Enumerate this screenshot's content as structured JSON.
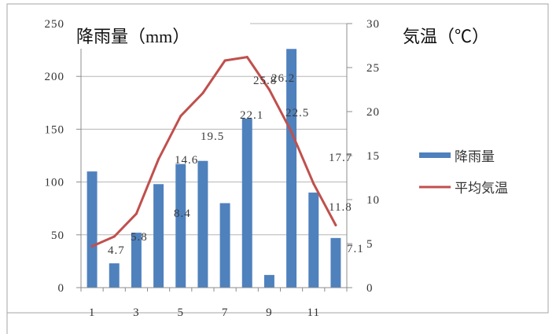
{
  "chart_data": {
    "type": "bar",
    "x": [
      1,
      2,
      3,
      4,
      5,
      6,
      7,
      8,
      9,
      10,
      11,
      12
    ],
    "x_tick_labels": [
      "1",
      "3",
      "5",
      "7",
      "9",
      "11"
    ],
    "series": [
      {
        "name": "降雨量",
        "type": "bar",
        "axis": "left",
        "color": "#4F81BD",
        "values": [
          110,
          23,
          52,
          98,
          117,
          120,
          80,
          160,
          12,
          226,
          90,
          47
        ]
      },
      {
        "name": "平均気温",
        "type": "line",
        "axis": "right",
        "color": "#C0504D",
        "values": [
          4.7,
          5.8,
          8.4,
          14.6,
          19.5,
          22.1,
          25.8,
          26.2,
          22.5,
          17.7,
          11.8,
          7.1
        ],
        "data_labels": [
          "4.7",
          "5.8",
          "8.4",
          "14.6",
          "19.5",
          "22.1",
          "25.8",
          "26.2",
          "22.5",
          "17.7",
          "11.8",
          "7.1"
        ]
      }
    ],
    "y_left": {
      "label": "降雨量（mm）",
      "range": [
        0,
        250
      ],
      "tick_labels": [
        "0",
        "50",
        "100",
        "150",
        "200",
        "250"
      ]
    },
    "y_right": {
      "label": "気温（℃）",
      "range": [
        0,
        30
      ],
      "tick_labels": [
        "0",
        "5",
        "10",
        "15",
        "20",
        "25",
        "30"
      ]
    },
    "grid": true,
    "legend": "right"
  }
}
